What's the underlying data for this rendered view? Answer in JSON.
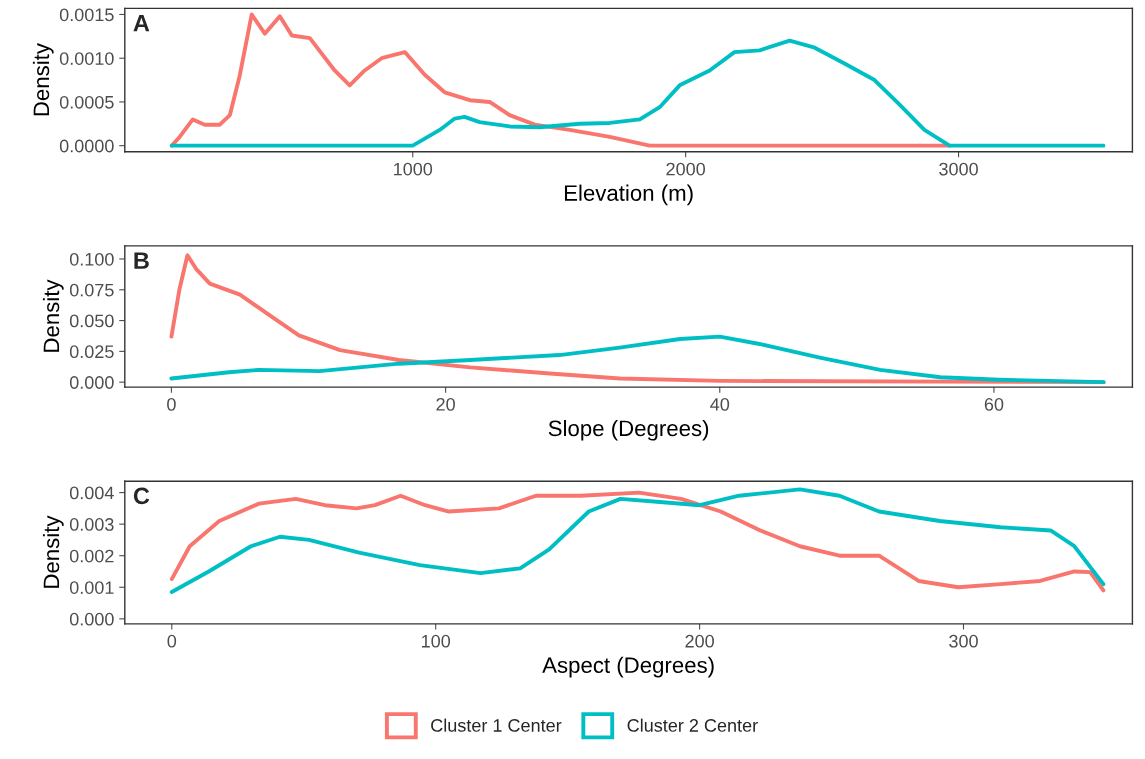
{
  "chart_data": [
    {
      "type": "line",
      "title": "A",
      "xlabel": "Elevation (m)",
      "ylabel": "Density",
      "xlim": [
        -55,
        3637
      ],
      "ylim": [
        -7e-05,
        0.00157
      ],
      "xticks": [
        1000,
        2000,
        3000
      ],
      "yticks": [
        {
          "value": 0,
          "label": "0.0000"
        },
        {
          "value": 0.0005,
          "label": "0.0005"
        },
        {
          "value": 0.001,
          "label": "0.0010"
        },
        {
          "value": 0.0015,
          "label": "0.0015"
        }
      ],
      "grid": false,
      "series": [
        {
          "color": "#f8766d",
          "x": [
            117,
            146,
            194,
            238,
            293,
            330,
            366,
            410,
            458,
            513,
            557,
            623,
            714,
            769,
            824,
            886,
            971,
            1044,
            1117,
            1209,
            1282,
            1355,
            1447,
            1575,
            1722,
            1868,
            2051,
            2967
          ],
          "values": [
            0,
            0.0001,
            0.0003,
            0.00024,
            0.00024,
            0.00035,
            0.0008,
            0.0015,
            0.00128,
            0.00148,
            0.00126,
            0.00123,
            0.00086,
            0.00069,
            0.00086,
            0.001,
            0.00107,
            0.00081,
            0.00061,
            0.00052,
            0.0005,
            0.00035,
            0.00024,
            0.00018,
            0.0001,
            0,
            0,
            0
          ]
        },
        {
          "color": "#00bfc4",
          "x": [
            117,
            916,
            1000,
            1099,
            1154,
            1190,
            1245,
            1355,
            1465,
            1612,
            1722,
            1832,
            1905,
            1978,
            2088,
            2179,
            2271,
            2381,
            2473,
            2582,
            2692,
            2784,
            2875,
            2967,
            3150,
            3531
          ],
          "values": [
            0,
            0,
            0,
            0.00018,
            0.00031,
            0.00033,
            0.00027,
            0.00022,
            0.00021,
            0.00025,
            0.00026,
            0.0003,
            0.00044,
            0.00069,
            0.00086,
            0.00107,
            0.00109,
            0.0012,
            0.00112,
            0.00094,
            0.00075,
            0.00047,
            0.00018,
            0,
            0,
            0
          ]
        }
      ]
    },
    {
      "type": "line",
      "title": "B",
      "xlabel": "Slope (Degrees)",
      "ylabel": "Density",
      "xlim": [
        -3.4,
        70.1
      ],
      "ylim": [
        -0.004,
        0.1106
      ],
      "xticks": [
        0,
        20,
        40,
        60
      ],
      "yticks": [
        {
          "value": 0,
          "label": "0.000"
        },
        {
          "value": 0.025,
          "label": "0.025"
        },
        {
          "value": 0.05,
          "label": "0.050"
        },
        {
          "value": 0.075,
          "label": "0.075"
        },
        {
          "value": 0.1,
          "label": "0.100"
        }
      ],
      "grid": false,
      "series": [
        {
          "color": "#f8766d",
          "x": [
            0,
            0.58,
            1.17,
            1.8,
            2.8,
            5,
            7.2,
            9.3,
            12.3,
            16.6,
            21.8,
            27.6,
            32.7,
            40,
            68
          ],
          "values": [
            0.037,
            0.075,
            0.103,
            0.092,
            0.08,
            0.071,
            0.054,
            0.038,
            0.026,
            0.018,
            0.012,
            0.007,
            0.003,
            0.001,
            0
          ]
        },
        {
          "color": "#00bfc4",
          "x": [
            0,
            4.2,
            6.4,
            10.8,
            16.6,
            21.8,
            28.3,
            32.7,
            37.1,
            40,
            42.9,
            47.3,
            51.7,
            56.1,
            60.4,
            68
          ],
          "values": [
            0.003,
            0.008,
            0.01,
            0.009,
            0.015,
            0.018,
            0.022,
            0.028,
            0.035,
            0.037,
            0.031,
            0.02,
            0.01,
            0.004,
            0.002,
            0
          ]
        }
      ]
    },
    {
      "type": "line",
      "title": "C",
      "xlabel": "Aspect (Degrees)",
      "ylabel": "Density",
      "xlim": [
        -17.8,
        364
      ],
      "ylim": [
        -0.00016,
        0.00436
      ],
      "xticks": [
        0,
        100,
        200,
        300
      ],
      "yticks": [
        {
          "value": 0,
          "label": "0.000"
        },
        {
          "value": 0.001,
          "label": "0.001"
        },
        {
          "value": 0.002,
          "label": "0.002"
        },
        {
          "value": 0.003,
          "label": "0.003"
        },
        {
          "value": 0.004,
          "label": "0.004"
        }
      ],
      "grid": false,
      "legend": "bottom",
      "series": [
        {
          "name": "Cluster 1 Center",
          "color": "#f8766d",
          "x": [
            0,
            6.8,
            18,
            33,
            47,
            58,
            70,
            77,
            86.7,
            96,
            105,
            124,
            138,
            155,
            177,
            193,
            208,
            223,
            238,
            253,
            268,
            283,
            298,
            314,
            329,
            342,
            348,
            353
          ],
          "values": [
            0.00126,
            0.0023,
            0.0031,
            0.00365,
            0.0038,
            0.0036,
            0.0035,
            0.0036,
            0.0039,
            0.0036,
            0.0034,
            0.0035,
            0.0039,
            0.0039,
            0.004,
            0.0038,
            0.0034,
            0.0028,
            0.0023,
            0.002,
            0.002,
            0.0012,
            0.001,
            0.0011,
            0.0012,
            0.0015,
            0.00148,
            0.0009
          ]
        },
        {
          "name": "Cluster 2 Center",
          "color": "#00bfc4",
          "x": [
            0,
            14,
            30,
            41,
            52,
            71,
            94,
            117,
            132,
            143,
            158,
            170,
            185,
            200,
            215,
            238,
            253,
            268,
            291,
            314,
            333,
            342,
            353
          ],
          "values": [
            0.00085,
            0.0015,
            0.0023,
            0.0026,
            0.0025,
            0.0021,
            0.0017,
            0.00145,
            0.0016,
            0.0022,
            0.0034,
            0.0038,
            0.0037,
            0.0036,
            0.0039,
            0.0041,
            0.0039,
            0.0034,
            0.0031,
            0.0029,
            0.0028,
            0.0023,
            0.0011
          ]
        }
      ]
    }
  ]
}
